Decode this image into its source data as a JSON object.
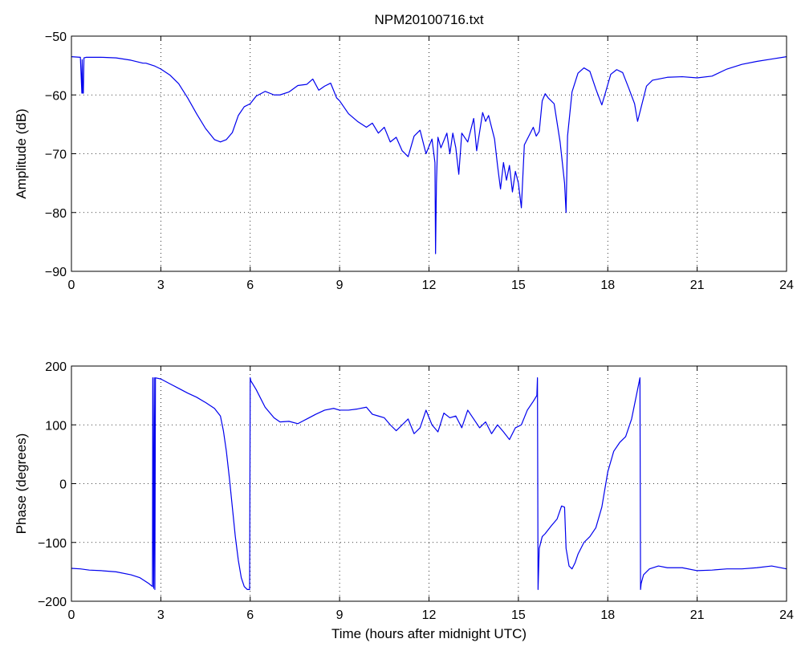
{
  "chart_data": [
    {
      "type": "line",
      "title": "NPM20100716.txt",
      "xlabel": "",
      "ylabel": "Amplitude (dB)",
      "xlim": [
        0,
        24
      ],
      "ylim": [
        -90,
        -50
      ],
      "xticks": [
        0,
        3,
        6,
        9,
        12,
        15,
        18,
        21,
        24
      ],
      "yticks": [
        -90,
        -80,
        -70,
        -60,
        -50
      ],
      "grid": true,
      "color": "#0000ee",
      "series": [
        {
          "x": [
            0,
            0.3,
            0.35,
            0.36,
            0.38,
            0.4,
            0.42,
            0.5,
            1.0,
            1.5,
            2.0,
            2.4,
            2.5,
            2.8,
            3.0,
            3.3,
            3.6,
            3.9,
            4.2,
            4.5,
            4.8,
            5.0,
            5.2,
            5.4,
            5.6,
            5.8,
            6.0,
            6.2,
            6.5,
            6.8,
            7.0,
            7.3,
            7.6,
            7.9,
            8.1,
            8.3,
            8.5,
            8.7,
            8.9,
            9.0,
            9.3,
            9.6,
            9.9,
            10.1,
            10.3,
            10.5,
            10.7,
            10.9,
            11.1,
            11.3,
            11.5,
            11.7,
            11.9,
            12.1,
            12.2,
            12.22,
            12.25,
            12.28,
            12.3,
            12.4,
            12.6,
            12.7,
            12.8,
            12.9,
            13.0,
            13.1,
            13.3,
            13.5,
            13.6,
            13.8,
            13.9,
            14.0,
            14.2,
            14.3,
            14.4,
            14.5,
            14.6,
            14.7,
            14.8,
            14.9,
            15.0,
            15.1,
            15.2,
            15.4,
            15.5,
            15.6,
            15.7,
            15.8,
            15.9,
            16.0,
            16.2,
            16.4,
            16.55,
            16.6,
            16.65,
            16.8,
            17.0,
            17.2,
            17.4,
            17.6,
            17.8,
            17.9,
            18.1,
            18.3,
            18.5,
            18.7,
            18.9,
            19.0,
            19.1,
            19.3,
            19.5,
            20.0,
            20.5,
            21.0,
            21.5,
            22.0,
            22.5,
            23.0,
            23.5,
            24.0
          ],
          "y": [
            -53.5,
            -53.6,
            -59.7,
            -54,
            -59.7,
            -59.7,
            -53.7,
            -53.6,
            -53.6,
            -53.7,
            -54.1,
            -54.6,
            -54.6,
            -55.1,
            -55.6,
            -56.6,
            -58.1,
            -60.5,
            -63.2,
            -65.7,
            -67.6,
            -68.0,
            -67.6,
            -66.4,
            -63.5,
            -62.0,
            -61.5,
            -60.2,
            -59.4,
            -60.0,
            -60.0,
            -59.5,
            -58.4,
            -58.2,
            -57.3,
            -59.2,
            -58.5,
            -58.0,
            -60.5,
            -61.0,
            -63.2,
            -64.5,
            -65.5,
            -64.8,
            -66.5,
            -65.5,
            -68.0,
            -67.2,
            -69.5,
            -70.5,
            -67.0,
            -66.0,
            -70.0,
            -67.5,
            -71.5,
            -87.0,
            -75.0,
            -70.0,
            -67.2,
            -69.0,
            -66.5,
            -70.0,
            -66.5,
            -69.0,
            -73.5,
            -66.5,
            -68.0,
            -64.0,
            -69.5,
            -63.0,
            -64.5,
            -63.5,
            -67.5,
            -72.0,
            -76.0,
            -71.5,
            -74.5,
            -72.0,
            -76.5,
            -73.0,
            -75.0,
            -79.2,
            -68.5,
            -66.5,
            -65.5,
            -67.0,
            -66.2,
            -61.0,
            -59.8,
            -60.5,
            -61.5,
            -68.0,
            -75.0,
            -80.0,
            -67.0,
            -59.5,
            -56.3,
            -55.4,
            -56.0,
            -59.0,
            -61.7,
            -60.0,
            -56.5,
            -55.7,
            -56.2,
            -58.8,
            -61.5,
            -64.5,
            -62.5,
            -58.5,
            -57.5,
            -57.0,
            -56.9,
            -57.1,
            -56.8,
            -55.6,
            -54.8,
            -54.3,
            -53.9,
            -53.5
          ]
        }
      ]
    },
    {
      "type": "line",
      "title": "",
      "xlabel": "Time (hours after midnight UTC)",
      "ylabel": "Phase (degrees)",
      "xlim": [
        0,
        24
      ],
      "ylim": [
        -200,
        200
      ],
      "xticks": [
        0,
        3,
        6,
        9,
        12,
        15,
        18,
        21,
        24
      ],
      "yticks": [
        -200,
        -100,
        0,
        100,
        200
      ],
      "grid": true,
      "color": "#0000ee",
      "series": [
        {
          "x": [
            0,
            0.3,
            0.6,
            1.0,
            1.5,
            2.0,
            2.3,
            2.6,
            2.72,
            2.73,
            2.76,
            2.78,
            2.8,
            2.82,
            3.0,
            3.3,
            3.6,
            3.9,
            4.2,
            4.5,
            4.8,
            5.0,
            5.1,
            5.2,
            5.3,
            5.4,
            5.5,
            5.6,
            5.7,
            5.8,
            5.9,
            5.98,
            6.0,
            6.02,
            6.2,
            6.5,
            6.8,
            7.0,
            7.3,
            7.6,
            7.9,
            8.2,
            8.5,
            8.8,
            9.0,
            9.3,
            9.6,
            9.9,
            10.1,
            10.3,
            10.5,
            10.7,
            10.9,
            11.1,
            11.3,
            11.5,
            11.7,
            11.9,
            12.1,
            12.3,
            12.5,
            12.7,
            12.9,
            13.1,
            13.3,
            13.5,
            13.7,
            13.9,
            14.1,
            14.3,
            14.5,
            14.7,
            14.9,
            15.1,
            15.3,
            15.5,
            15.62,
            15.64,
            15.66,
            15.7,
            15.8,
            15.9,
            16.1,
            16.3,
            16.45,
            16.55,
            16.6,
            16.7,
            16.8,
            16.9,
            17.0,
            17.2,
            17.4,
            17.6,
            17.8,
            18.0,
            18.2,
            18.4,
            18.6,
            18.8,
            19.0,
            19.08,
            19.1,
            19.12,
            19.2,
            19.4,
            19.7,
            20.0,
            20.5,
            21.0,
            21.5,
            22.0,
            22.5,
            23.0,
            23.5,
            24.0
          ],
          "y": [
            -144,
            -145,
            -147,
            -148,
            -150,
            -155,
            -160,
            -170,
            -175,
            180,
            -178,
            180,
            -180,
            180,
            178,
            170,
            162,
            154,
            147,
            138,
            128,
            115,
            90,
            55,
            10,
            -40,
            -90,
            -130,
            -160,
            -175,
            -180,
            -180,
            180,
            175,
            160,
            130,
            112,
            105,
            106,
            102,
            110,
            118,
            125,
            128,
            125,
            125,
            127,
            130,
            118,
            115,
            112,
            100,
            90,
            100,
            110,
            85,
            95,
            125,
            100,
            88,
            120,
            112,
            115,
            95,
            125,
            110,
            95,
            105,
            85,
            100,
            88,
            75,
            95,
            100,
            125,
            140,
            150,
            180,
            -180,
            -110,
            -90,
            -85,
            -72,
            -60,
            -38,
            -40,
            -110,
            -140,
            -145,
            -135,
            -120,
            -100,
            -90,
            -75,
            -40,
            20,
            55,
            70,
            80,
            110,
            160,
            180,
            -180,
            -170,
            -155,
            -145,
            -140,
            -143,
            -143,
            -148,
            -147,
            -145,
            -145,
            -143,
            -140,
            -145
          ]
        }
      ]
    }
  ]
}
